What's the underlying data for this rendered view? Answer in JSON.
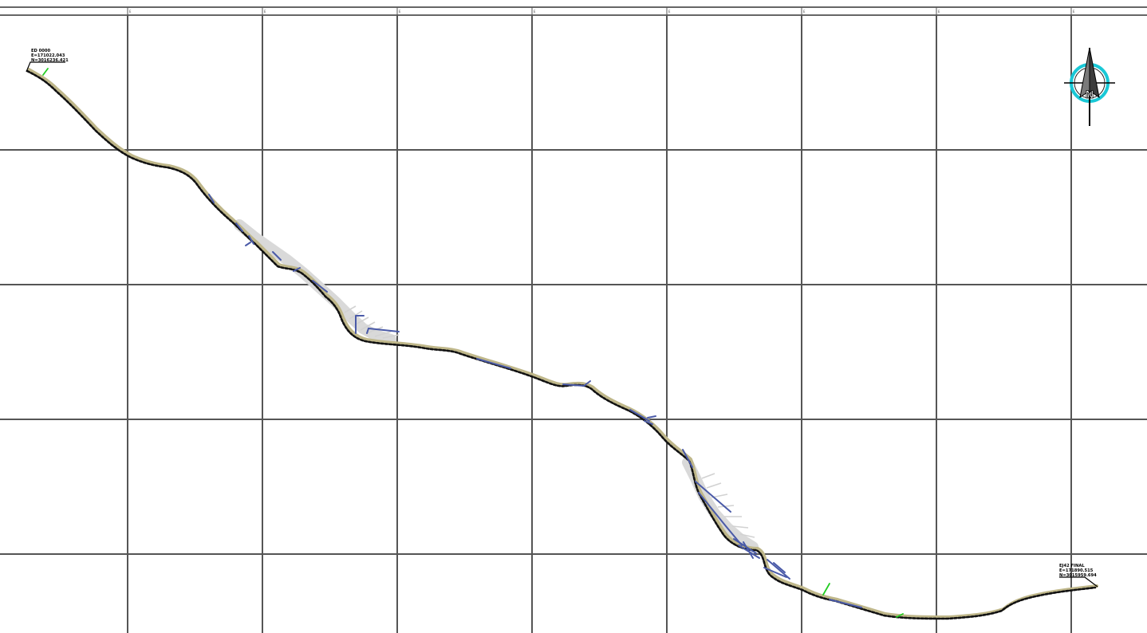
{
  "drawing": {
    "type": "survey-plan",
    "grid_tick_labels": [
      "E",
      "E",
      "E",
      "E",
      "E",
      "E",
      "E",
      "E"
    ]
  },
  "start_point": {
    "name": "ED 0000",
    "coord_e": "E=171022.043",
    "coord_n": "N=3016236.421"
  },
  "end_point": {
    "name": "EJ42 FINAL",
    "coord_e": "E=171890.515",
    "coord_n": "N=3015959.694"
  },
  "north_arrow": {
    "letter": "N",
    "ring_color": "#19c8d6",
    "needle_color": "#6b6b6b"
  },
  "colors": {
    "grid": "#555555",
    "route": "#111111",
    "drainage": "#4a5aa8",
    "markers": "#22cc22",
    "pad": "#d9d9d9"
  }
}
